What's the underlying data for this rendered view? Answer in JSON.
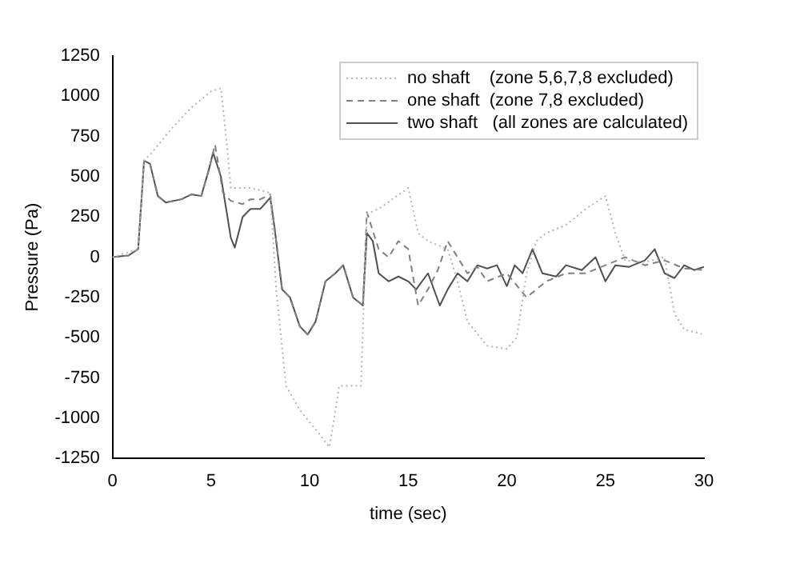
{
  "chart_data": {
    "type": "line",
    "xlabel": "time (sec)",
    "ylabel": "Pressure (Pa)",
    "xlim": [
      0,
      30
    ],
    "xticks": [
      0,
      5,
      10,
      15,
      20,
      25,
      30
    ],
    "ylim": [
      -1250,
      1250
    ],
    "yticks": [
      -1250,
      -1000,
      -750,
      -500,
      -250,
      0,
      250,
      500,
      750,
      1000,
      1250
    ],
    "grid": false,
    "legend": "top right",
    "marker": "none",
    "series": [
      {
        "name": "no shaft    (zone 5,6,7,8 excluded)",
        "color": "#b4b4b4",
        "line_style": "dotted",
        "x": [
          0,
          1.3,
          1.6,
          2,
          3,
          4,
          5,
          5.5,
          5.8,
          6,
          7,
          8,
          8.3,
          8.8,
          9.5,
          10.5,
          11,
          11.5,
          12,
          12.6,
          12.9,
          13.5,
          15,
          15.5,
          16,
          17,
          17.5,
          18,
          19,
          20,
          20.5,
          21,
          21.5,
          22,
          23,
          24,
          25,
          25.5,
          26,
          27,
          28,
          28.5,
          29,
          30
        ],
        "values": [
          0,
          50,
          600,
          650,
          800,
          930,
          1030,
          1050,
          700,
          430,
          430,
          400,
          -200,
          -800,
          -950,
          -1100,
          -1180,
          -800,
          -800,
          -800,
          270,
          300,
          430,
          150,
          100,
          50,
          -150,
          -400,
          -550,
          -570,
          -500,
          -100,
          100,
          150,
          200,
          300,
          380,
          150,
          -20,
          -30,
          0,
          -350,
          -450,
          -480
        ]
      },
      {
        "name": "one shaft  (zone 7,8 excluded)",
        "color": "#808080",
        "line_style": "dashed",
        "x": [
          0,
          0.8,
          1.3,
          1.6,
          1.9,
          2.3,
          2.7,
          3.5,
          4,
          4.5,
          4.9,
          5.2,
          5.6,
          6,
          6.6,
          7,
          7.5,
          8,
          8.2,
          8.6,
          9,
          9.5,
          9.9,
          10.3,
          10.8,
          11.3,
          11.7,
          12.2,
          12.7,
          12.9,
          13.5,
          14,
          14.5,
          15,
          15.5,
          16,
          16.5,
          17,
          17.5,
          18,
          18.5,
          19,
          20,
          21,
          21.5,
          22,
          23,
          24,
          25,
          26,
          27,
          28,
          29,
          30
        ],
        "values": [
          0,
          10,
          50,
          600,
          580,
          380,
          340,
          360,
          390,
          380,
          550,
          700,
          400,
          350,
          330,
          360,
          360,
          390,
          200,
          -200,
          -250,
          -430,
          -480,
          -400,
          -150,
          -100,
          -50,
          -250,
          -300,
          280,
          50,
          0,
          100,
          50,
          -300,
          -200,
          -80,
          100,
          0,
          -100,
          -60,
          -150,
          -100,
          -250,
          -200,
          -150,
          -100,
          -100,
          -50,
          0,
          -50,
          -20,
          -70,
          -80
        ]
      },
      {
        "name": "two shaft   (all zones are calculated)",
        "color": "#505050",
        "line_style": "solid",
        "x": [
          0,
          0.8,
          1.3,
          1.6,
          1.9,
          2.3,
          2.7,
          3.5,
          4,
          4.5,
          4.9,
          5.1,
          5.5,
          6,
          6.2,
          6.6,
          7,
          7.5,
          8,
          8.2,
          8.6,
          9,
          9.5,
          9.9,
          10.3,
          10.8,
          11.3,
          11.7,
          12.2,
          12.7,
          12.9,
          13.2,
          13.5,
          14,
          14.5,
          15,
          15.4,
          16,
          16.6,
          17,
          17.5,
          18,
          18.5,
          19,
          19.5,
          20,
          20.4,
          20.8,
          21.3,
          21.8,
          22.5,
          23,
          23.8,
          24.5,
          25,
          25.5,
          26.2,
          27,
          27.5,
          28,
          28.5,
          29,
          29.5,
          30
        ],
        "values": [
          0,
          10,
          50,
          600,
          580,
          380,
          340,
          360,
          390,
          380,
          550,
          650,
          500,
          120,
          60,
          250,
          300,
          300,
          370,
          200,
          -200,
          -250,
          -430,
          -480,
          -400,
          -150,
          -100,
          -50,
          -250,
          -300,
          150,
          100,
          -100,
          -150,
          -120,
          -150,
          -200,
          -100,
          -300,
          -200,
          -100,
          -150,
          -50,
          -70,
          -50,
          -180,
          -50,
          -100,
          50,
          -100,
          -120,
          -50,
          -80,
          0,
          -150,
          -50,
          -60,
          -20,
          50,
          -100,
          -130,
          -50,
          -80,
          -60
        ]
      }
    ]
  }
}
